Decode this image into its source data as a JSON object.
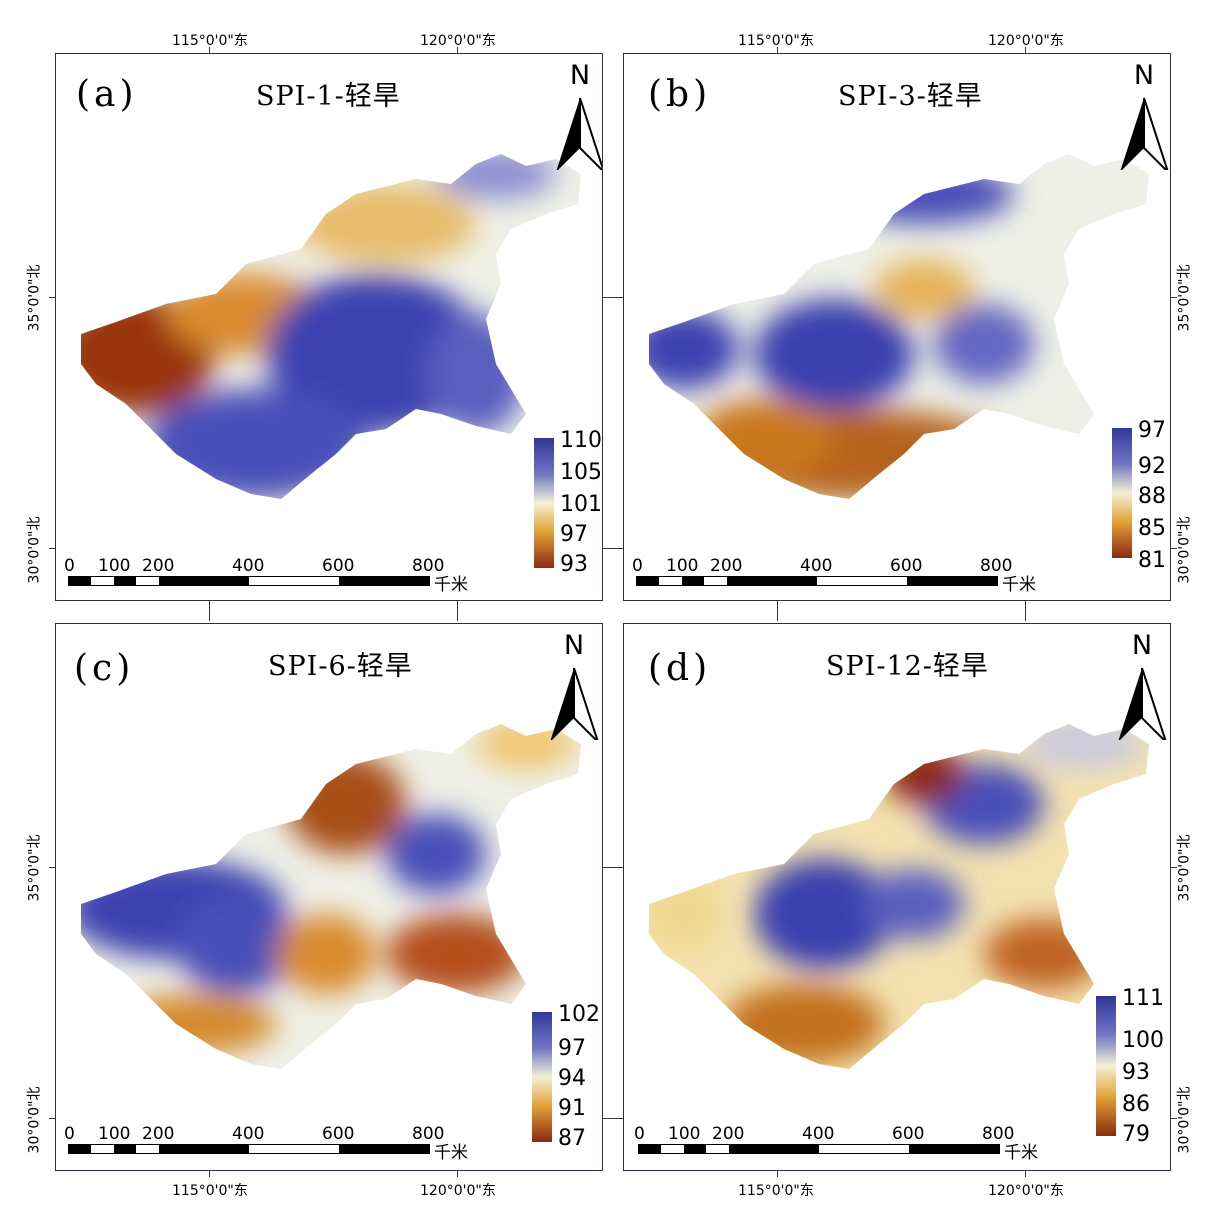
{
  "axes": {
    "lon_label_115": "115°0'0\"东",
    "lon_label_120": "120°0'0\"东",
    "lat_label_35": "35°0'0\"北",
    "lat_label_30": "30°0'0\"北"
  },
  "scale": {
    "ticks": [
      "0",
      "100",
      "200",
      "400",
      "600",
      "800"
    ],
    "unit": "千米"
  },
  "north_label": "N",
  "colors": {
    "high": "#3b3fb3",
    "mid": "#f2f0d0",
    "low": "#8c2a12"
  },
  "panels": [
    {
      "id": "a",
      "label": "(a)",
      "title": "SPI-1-轻旱",
      "legend": [
        "110",
        "105",
        "101",
        "97",
        "93"
      ]
    },
    {
      "id": "b",
      "label": "(b)",
      "title": "SPI-3-轻旱",
      "legend": [
        "97",
        "92",
        "88",
        "85",
        "81"
      ]
    },
    {
      "id": "c",
      "label": "(c)",
      "title": "SPI-6-轻旱",
      "legend": [
        "102",
        "97",
        "94",
        "91",
        "87"
      ]
    },
    {
      "id": "d",
      "label": "(d)",
      "title": "SPI-12-轻旱",
      "legend": [
        "111",
        "100",
        "93",
        "86",
        "79"
      ]
    }
  ]
}
